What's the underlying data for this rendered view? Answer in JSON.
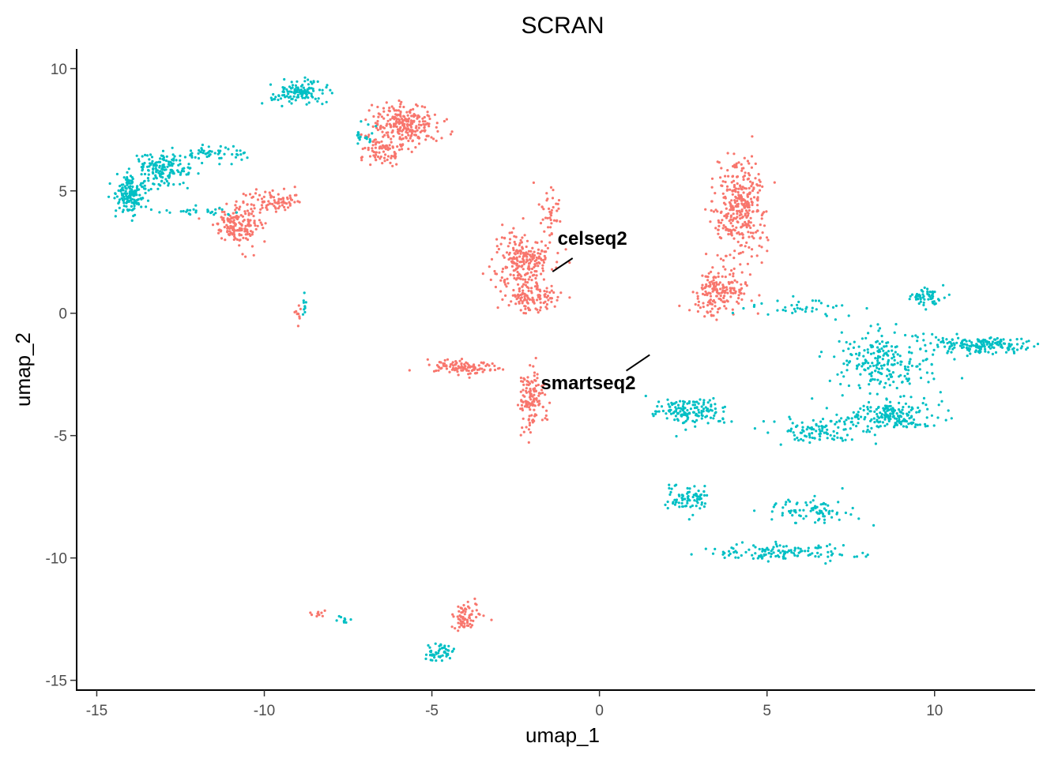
{
  "chart_data": {
    "type": "scatter",
    "title": "SCRAN",
    "xlabel": "umap_1",
    "ylabel": "umap_2",
    "xlim": [
      -15.6,
      13.0
    ],
    "ylim": [
      -15.4,
      10.8
    ],
    "xticks": [
      -15,
      -10,
      -5,
      0,
      5,
      10
    ],
    "yticks": [
      -15,
      -10,
      -5,
      0,
      5,
      10
    ],
    "xtick_labels": [
      "-15",
      "-10",
      "-5",
      "0",
      "5",
      "10"
    ],
    "ytick_labels": [
      "-15",
      "-10",
      "-5",
      "0",
      "5",
      "10"
    ],
    "grid": false,
    "legend": "none",
    "series": [
      {
        "name": "celseq2",
        "color": "#F8766D",
        "clusters": [
          {
            "cx": -5.8,
            "cy": 7.7,
            "rx": 0.9,
            "ry": 0.8,
            "n": 260
          },
          {
            "cx": -6.6,
            "cy": 6.6,
            "rx": 0.6,
            "ry": 0.5,
            "n": 70
          },
          {
            "cx": -10.8,
            "cy": 3.6,
            "rx": 0.6,
            "ry": 0.7,
            "n": 170
          },
          {
            "cx": -9.8,
            "cy": 4.6,
            "rx": 0.7,
            "ry": 0.4,
            "n": 90
          },
          {
            "cx": -2.3,
            "cy": 2.1,
            "rx": 0.8,
            "ry": 1.1,
            "n": 230
          },
          {
            "cx": -2.0,
            "cy": 0.6,
            "rx": 0.7,
            "ry": 0.6,
            "n": 110
          },
          {
            "cx": -1.5,
            "cy": 4.2,
            "rx": 0.3,
            "ry": 0.9,
            "n": 40
          },
          {
            "cx": 4.2,
            "cy": 4.3,
            "rx": 0.7,
            "ry": 1.7,
            "n": 330
          },
          {
            "cx": 3.6,
            "cy": 0.9,
            "rx": 0.8,
            "ry": 0.8,
            "n": 180
          },
          {
            "cx": -4.2,
            "cy": -2.2,
            "rx": 0.9,
            "ry": 0.25,
            "n": 110
          },
          {
            "cx": -2.0,
            "cy": -3.6,
            "rx": 0.35,
            "ry": 1.1,
            "n": 130
          },
          {
            "cx": -4.0,
            "cy": -12.4,
            "rx": 0.4,
            "ry": 0.4,
            "n": 70
          },
          {
            "cx": -8.3,
            "cy": -12.3,
            "rx": 0.25,
            "ry": 0.1,
            "n": 10
          },
          {
            "cx": -9.0,
            "cy": 0.0,
            "rx": 0.08,
            "ry": 0.5,
            "n": 10
          }
        ]
      },
      {
        "name": "smartseq2",
        "color": "#00BFC4",
        "clusters": [
          {
            "cx": -9.0,
            "cy": 9.0,
            "rx": 0.9,
            "ry": 0.4,
            "n": 120
          },
          {
            "cx": -14.0,
            "cy": 4.9,
            "rx": 0.4,
            "ry": 0.7,
            "n": 170
          },
          {
            "cx": -13.0,
            "cy": 5.9,
            "rx": 0.8,
            "ry": 0.6,
            "n": 150
          },
          {
            "cx": -11.5,
            "cy": 6.5,
            "rx": 1.2,
            "ry": 0.3,
            "n": 60
          },
          {
            "cx": -12.0,
            "cy": 4.2,
            "rx": 1.0,
            "ry": 0.2,
            "n": 30
          },
          {
            "cx": -7.0,
            "cy": 7.2,
            "rx": 0.3,
            "ry": 0.5,
            "n": 20
          },
          {
            "cx": 8.5,
            "cy": -2.0,
            "rx": 1.4,
            "ry": 1.2,
            "n": 230
          },
          {
            "cx": 8.8,
            "cy": -4.2,
            "rx": 1.2,
            "ry": 0.5,
            "n": 180
          },
          {
            "cx": 6.5,
            "cy": -4.8,
            "rx": 1.2,
            "ry": 0.5,
            "n": 110
          },
          {
            "cx": 11.3,
            "cy": -1.3,
            "rx": 1.2,
            "ry": 0.3,
            "n": 170
          },
          {
            "cx": 9.8,
            "cy": 0.7,
            "rx": 0.4,
            "ry": 0.3,
            "n": 60
          },
          {
            "cx": 2.7,
            "cy": -4.0,
            "rx": 1.0,
            "ry": 0.5,
            "n": 150
          },
          {
            "cx": 2.6,
            "cy": -7.6,
            "rx": 0.6,
            "ry": 0.5,
            "n": 80
          },
          {
            "cx": 6.2,
            "cy": -8.0,
            "rx": 1.2,
            "ry": 0.5,
            "n": 80
          },
          {
            "cx": 5.5,
            "cy": -9.8,
            "rx": 1.9,
            "ry": 0.3,
            "n": 130
          },
          {
            "cx": 6.0,
            "cy": 0.2,
            "rx": 1.5,
            "ry": 0.4,
            "n": 40
          },
          {
            "cx": -4.8,
            "cy": -13.9,
            "rx": 0.4,
            "ry": 0.3,
            "n": 50
          },
          {
            "cx": -7.8,
            "cy": -12.5,
            "rx": 0.3,
            "ry": 0.2,
            "n": 10
          },
          {
            "cx": -8.8,
            "cy": 0.4,
            "rx": 0.06,
            "ry": 0.4,
            "n": 10
          }
        ]
      }
    ],
    "annotations": [
      {
        "text": "celseq2",
        "x": -1.25,
        "y": 2.8,
        "line": [
          [
            -1.4,
            1.7
          ],
          [
            -0.8,
            2.25
          ]
        ]
      },
      {
        "text": "smartseq2",
        "x": -1.75,
        "y": -3.1,
        "line": [
          [
            0.8,
            -2.35
          ],
          [
            1.5,
            -1.7
          ]
        ]
      }
    ]
  }
}
